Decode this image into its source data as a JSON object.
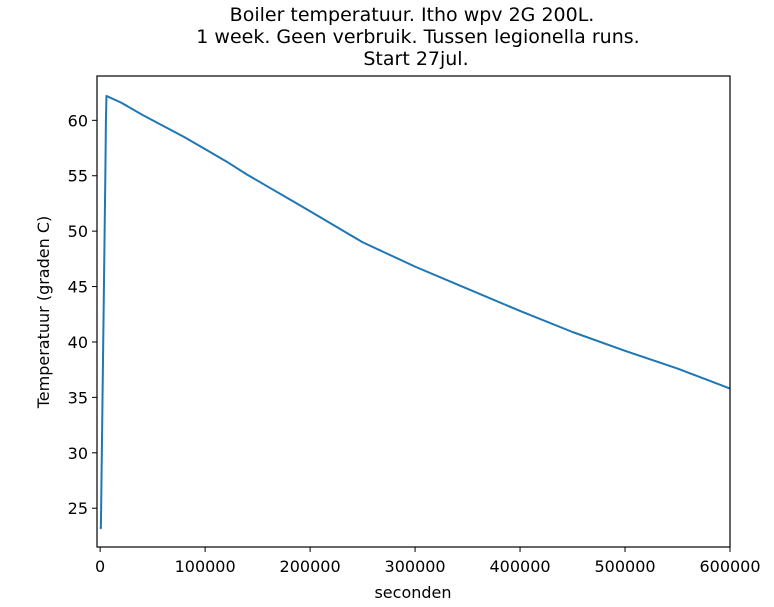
{
  "chart_data": {
    "type": "line",
    "title_lines": [
      "Boiler temperatuur. Itho wpv 2G 200L.",
      "1 week. Geen verbruik. Tussen legionella runs.",
      "Start 27jul."
    ],
    "xlabel": "seconden",
    "ylabel": "Temperatuur (graden C)",
    "xlim": [
      -3000,
      600000
    ],
    "ylim": [
      21.5,
      64.0
    ],
    "x_ticks": [
      0,
      100000,
      200000,
      300000,
      400000,
      500000,
      600000
    ],
    "x_tick_labels": [
      "0",
      "100000",
      "200000",
      "300000",
      "400000",
      "500000",
      "600000"
    ],
    "y_ticks": [
      25,
      30,
      35,
      40,
      45,
      50,
      55,
      60
    ],
    "y_tick_labels": [
      "25",
      "30",
      "35",
      "40",
      "45",
      "50",
      "55",
      "60"
    ],
    "grid": false,
    "series_color": "#1f77b4",
    "series": [
      {
        "x": [
          0,
          700,
          5000,
          5500,
          6000,
          20000,
          40000,
          60000,
          80000,
          100000,
          120000,
          140000,
          160000,
          180000,
          200000,
          250000,
          300000,
          350000,
          400000,
          450000,
          500000,
          550000,
          600000
        ],
        "y": [
          23.3,
          23.2,
          55.5,
          60.0,
          62.2,
          61.6,
          60.5,
          59.5,
          58.5,
          57.4,
          56.3,
          55.1,
          54.0,
          52.9,
          51.8,
          49.0,
          46.8,
          44.8,
          42.8,
          40.9,
          39.2,
          37.6,
          35.8
        ]
      }
    ]
  }
}
